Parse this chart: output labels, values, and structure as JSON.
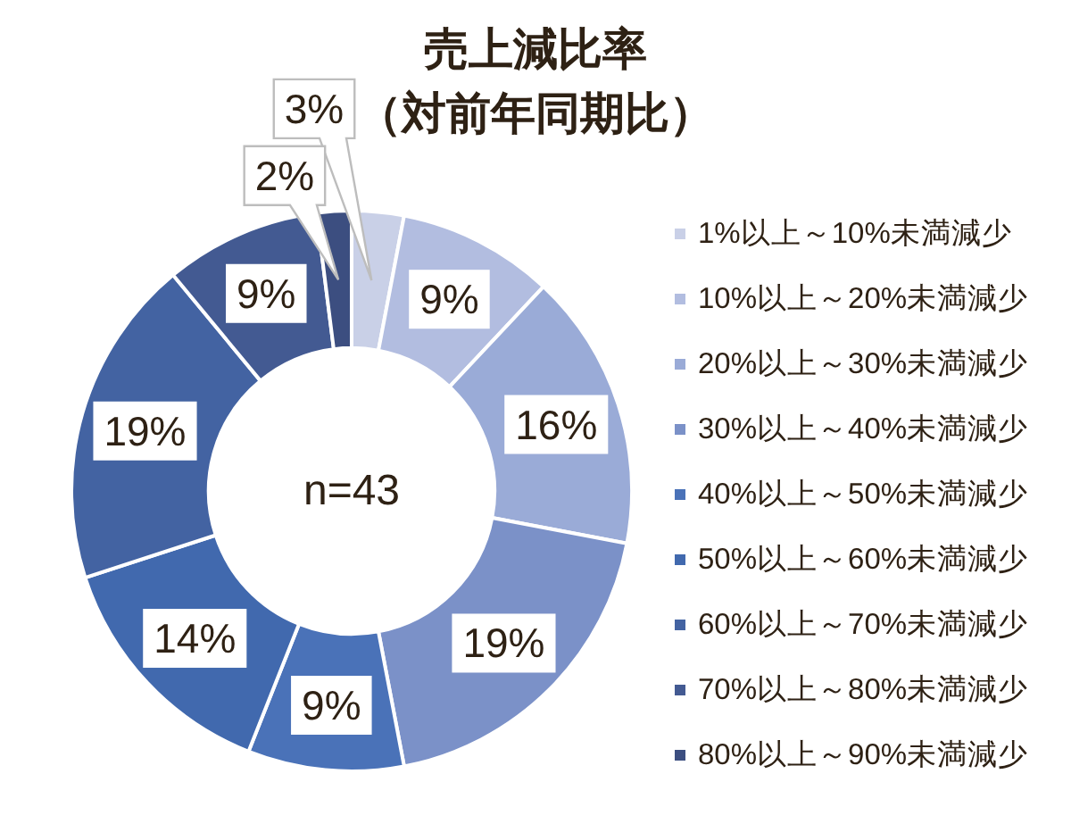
{
  "chart_data": {
    "type": "donut",
    "title": "売上減比率",
    "subtitle": "（対前年同期比）",
    "categories": [
      "1%以上～10%未満減少",
      "10%以上～20%未満減少",
      "20%以上～30%未満減少",
      "30%以上～40%未満減少",
      "40%以上～50%未満減少",
      "50%以上～60%未満減少",
      "60%以上～70%未満減少",
      "70%以上～80%未満減少",
      "80%以上～90%未満減少"
    ],
    "values": [
      3,
      9,
      16,
      19,
      9,
      14,
      19,
      9,
      2
    ],
    "value_labels": [
      "3%",
      "9%",
      "16%",
      "19%",
      "9%",
      "14%",
      "19%",
      "9%",
      "2%"
    ],
    "colors": [
      "#c9d0e7",
      "#b2bde0",
      "#9aabd7",
      "#7b91c8",
      "#4a72b8",
      "#4169ae",
      "#4363a2",
      "#435a92",
      "#3c4e80"
    ],
    "legend": "right",
    "annotations": [
      "n=43"
    ]
  }
}
